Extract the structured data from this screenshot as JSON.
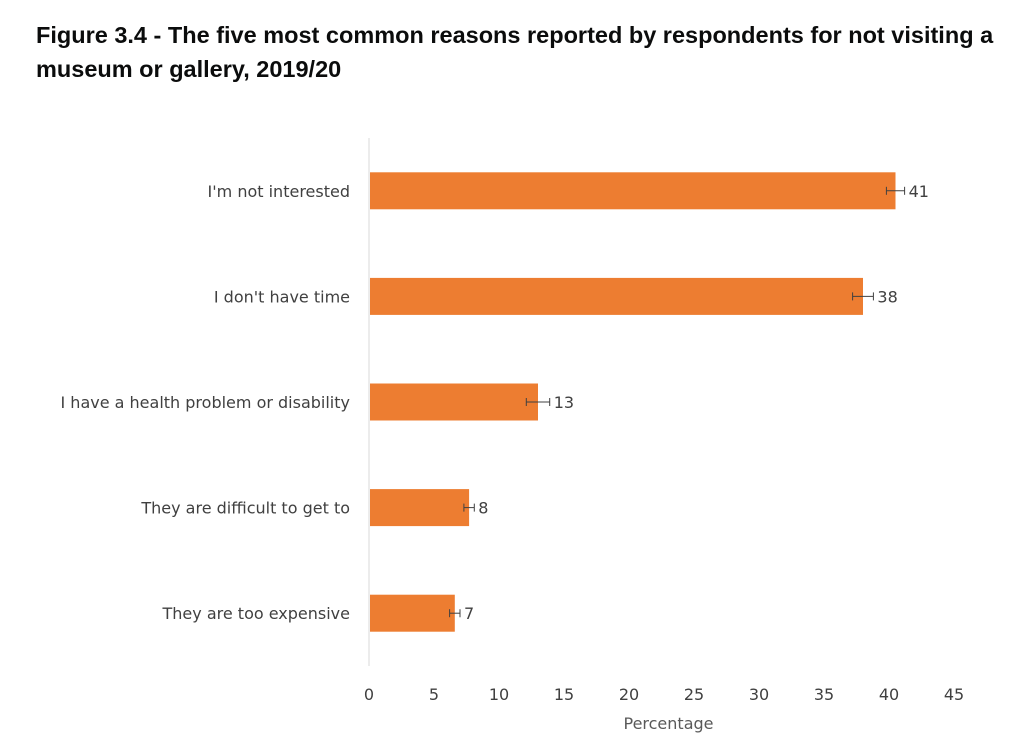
{
  "title": "Figure 3.4 - The five most common reasons reported by respondents for not visiting a museum or gallery, 2019/20",
  "chart_data": {
    "type": "bar",
    "orientation": "horizontal",
    "title": "Figure 3.4 - The five most common reasons reported by respondents for not visiting a museum or gallery, 2019/20",
    "categories": [
      "I'm not interested",
      "I don't have time",
      "I have a health problem or disability",
      "They are difficult to get to",
      "They are too expensive"
    ],
    "values": [
      40.5,
      38,
      13,
      7.7,
      6.6
    ],
    "data_labels": [
      "41",
      "38",
      "13",
      "8",
      "7"
    ],
    "error_bars": [
      {
        "low": 39.8,
        "high": 41.2
      },
      {
        "low": 37.2,
        "high": 38.8
      },
      {
        "low": 12.1,
        "high": 13.9
      },
      {
        "low": 7.3,
        "high": 8.1
      },
      {
        "low": 6.2,
        "high": 7.0
      }
    ],
    "xlabel": "Percentage",
    "ylabel": "",
    "xlim": [
      0,
      45
    ],
    "x_ticks": [
      0,
      5,
      10,
      15,
      20,
      25,
      30,
      35,
      40,
      45
    ],
    "grid": false,
    "legend": "none",
    "bar_color": "#ED7D31",
    "error_bar_color": "#404040"
  }
}
